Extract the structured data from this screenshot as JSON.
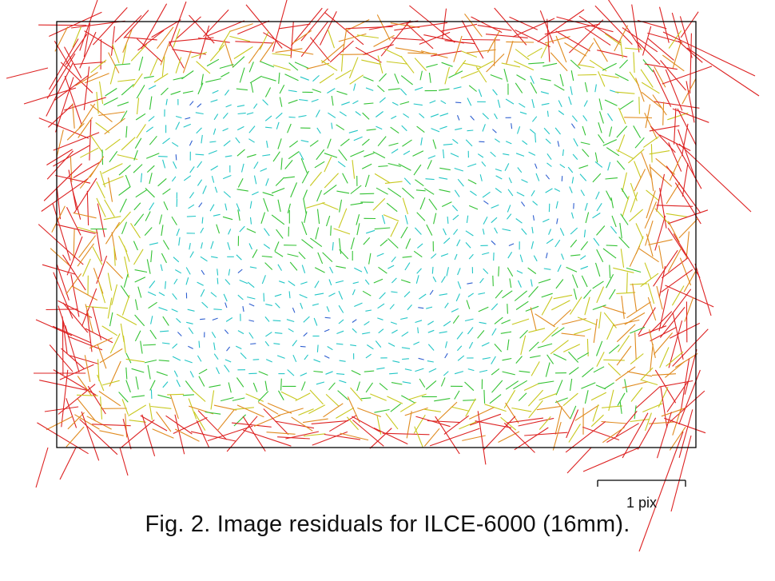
{
  "figure": {
    "caption": "Fig. 2. Image residuals for ILCE-6000 (16mm).",
    "scale_bar": {
      "label": "1 pix",
      "represents_pixels": 1
    },
    "colors": {
      "frame": "#000000",
      "low_residual": "#2f5fd0",
      "low_mid_residual": "#22c6c6",
      "mid_residual": "#33c233",
      "mid_high_residual": "#c8c81e",
      "high_residual": "#e08a1e",
      "max_residual": "#dd2222"
    },
    "description_layers": {
      "vector_field": "residual-vectors",
      "image_frame": "image-frame"
    }
  }
}
